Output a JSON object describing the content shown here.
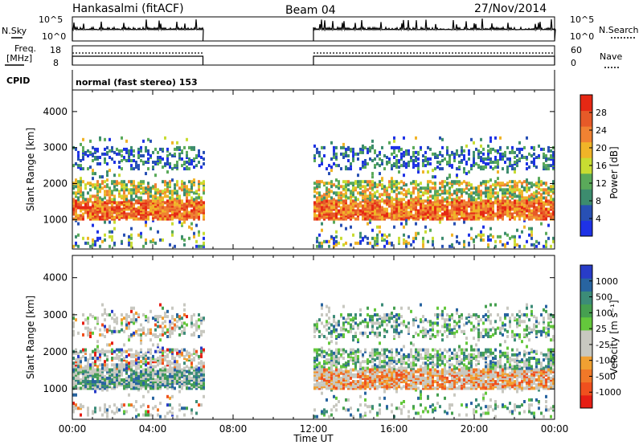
{
  "header": {
    "title": "Hankasalmi (fitACF)",
    "beam": "Beam 04",
    "date": "27/Nov/2014"
  },
  "status_labels": {
    "nsky": "N.Sky",
    "nsearch": "N.Search",
    "freq_line1": "Freq.",
    "freq_line2": "[MHz]",
    "nave": "Nave",
    "cpid": "CPID",
    "cpid_value": "normal (fast stereo) 153",
    "nsky_ticks": [
      "10^5",
      "10^0"
    ],
    "nsearch_ticks": [
      "10^5",
      "10^0"
    ],
    "freq_ticks": [
      "18",
      "8"
    ],
    "nave_ticks": [
      "60",
      "0"
    ]
  },
  "colors": {
    "power": [
      "#1e32e6",
      "#2850b4",
      "#3c8c6e",
      "#5aaa5a",
      "#c8dc32",
      "#f0b428",
      "#f08232",
      "#e65a28",
      "#e62814"
    ],
    "velocity": [
      "#e61e14",
      "#f0501e",
      "#f07828",
      "#f0a032",
      "#c8c8c0",
      "#c8c8c0",
      "#64c83c",
      "#46a050",
      "#3c8c78",
      "#2864a0",
      "#283cc8"
    ]
  },
  "chart_data": [
    {
      "type": "heatmap",
      "name": "power",
      "ylabel": "Slant Range [km]",
      "y_ticks": [
        "4000",
        "3000",
        "2000",
        "1000"
      ],
      "ylim": [
        180,
        4600
      ],
      "colorbar_label": "Power [dB]",
      "colorbar_ticks": [
        "28",
        "24",
        "20",
        "16",
        "12",
        "8",
        "4"
      ],
      "segments": [
        {
          "t_start": "00:00",
          "t_end": "06:30",
          "range_min": 250,
          "range_max": 3300
        },
        {
          "t_start": "12:00",
          "t_end": "24:00",
          "range_min": 250,
          "range_max": 3300
        }
      ]
    },
    {
      "type": "heatmap",
      "name": "velocity",
      "ylabel": "Slant Range [km]",
      "y_ticks": [
        "4000",
        "3000",
        "2000",
        "1000"
      ],
      "ylim": [
        180,
        4600
      ],
      "colorbar_label": "Velocity [m s⁻¹]",
      "colorbar_ticks": [
        "1000",
        "500",
        "100",
        "25",
        "-25",
        "-100",
        "-500",
        "-1000"
      ],
      "xlabel": "Time UT",
      "x_ticks": [
        "00:00",
        "04:00",
        "08:00",
        "12:00",
        "16:00",
        "20:00",
        "00:00"
      ],
      "segments": [
        {
          "t_start": "00:00",
          "t_end": "06:30",
          "range_min": 250,
          "range_max": 3300
        },
        {
          "t_start": "12:00",
          "t_end": "24:00",
          "range_min": 250,
          "range_max": 3300
        }
      ]
    }
  ]
}
